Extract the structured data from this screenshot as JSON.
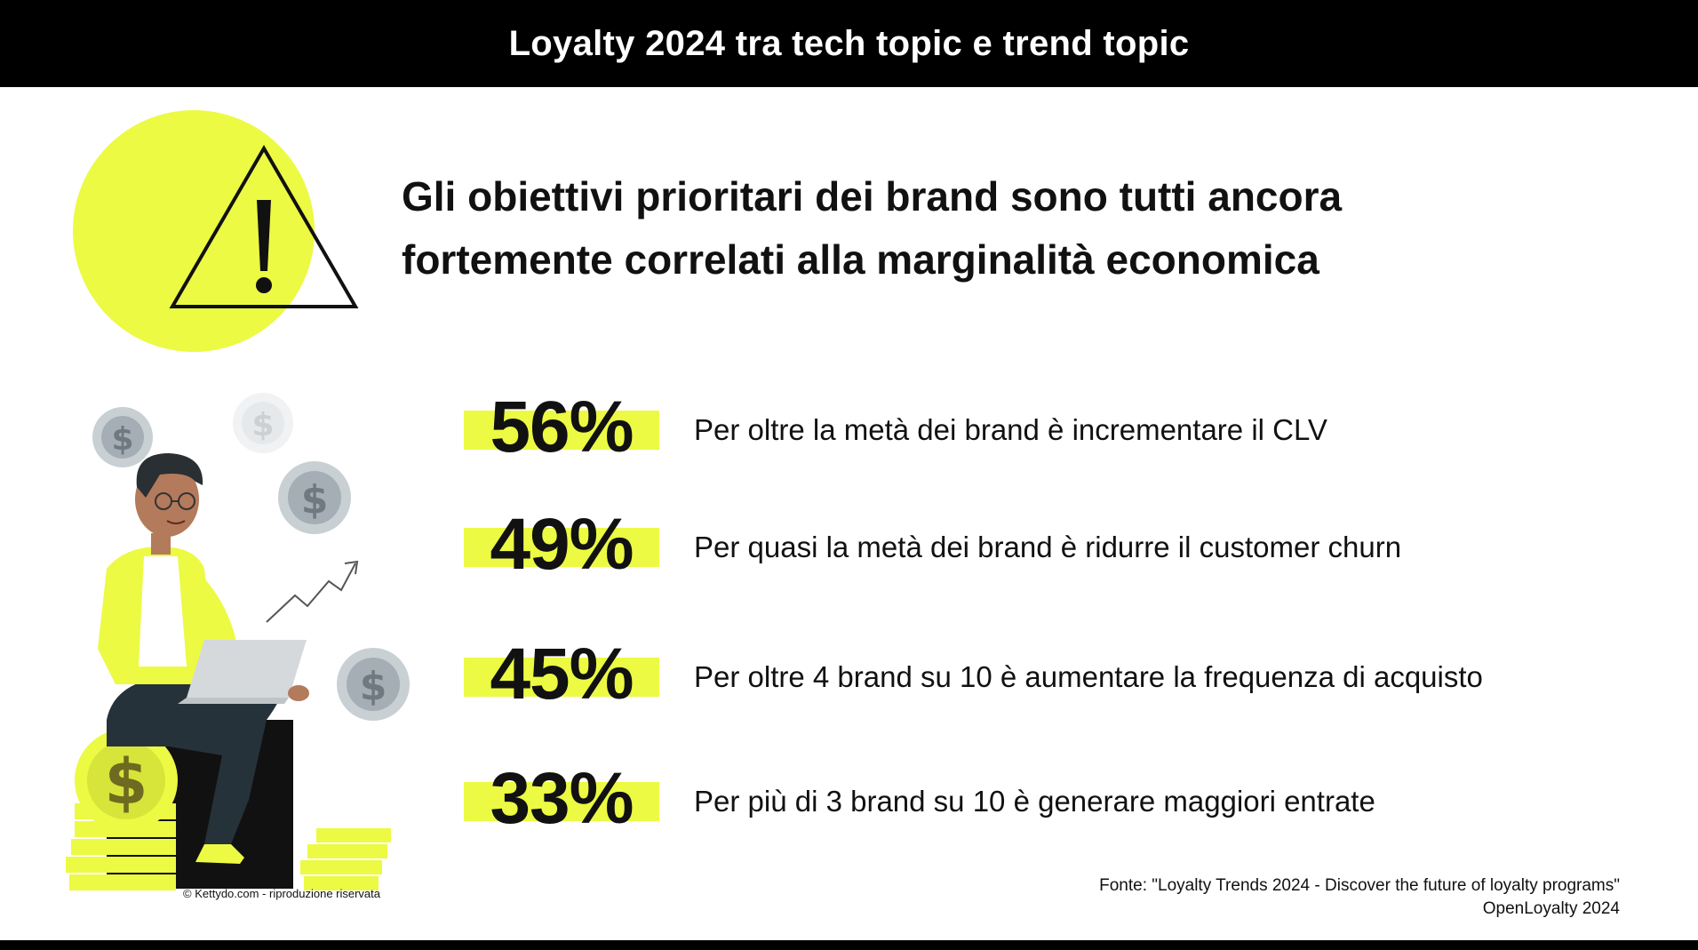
{
  "header": {
    "title": "Loyalty 2024 tra tech topic e trend topic"
  },
  "headline": {
    "line1": "Gli obiettivi prioritari dei brand sono tutti ancora",
    "line2": "fortemente correlati alla marginalità economica"
  },
  "icons": {
    "warning": "warning-triangle-icon",
    "illustration": "person-laptop-coins-illustration"
  },
  "colors": {
    "accent": "#ecfa43",
    "background": "#ffffff",
    "bar": "#000000",
    "text": "#111111"
  },
  "stats": [
    {
      "percent": "56%",
      "text": "Per oltre la metà dei brand è incrementare il CLV"
    },
    {
      "percent": "49%",
      "text": "Per quasi la metà dei brand è ridurre il customer churn"
    },
    {
      "percent": "45%",
      "text": "Per oltre 4 brand su 10 è aumentare la frequenza di acquisto"
    },
    {
      "percent": "33%",
      "text": "Per più di 3 brand su 10 è generare maggiori entrate"
    }
  ],
  "credit": "© Kettydo.com - riproduzione riservata",
  "source": {
    "line1": "Fonte: \"Loyalty Trends 2024 - Discover the future of loyalty programs\"",
    "line2": "OpenLoyalty 2024"
  }
}
